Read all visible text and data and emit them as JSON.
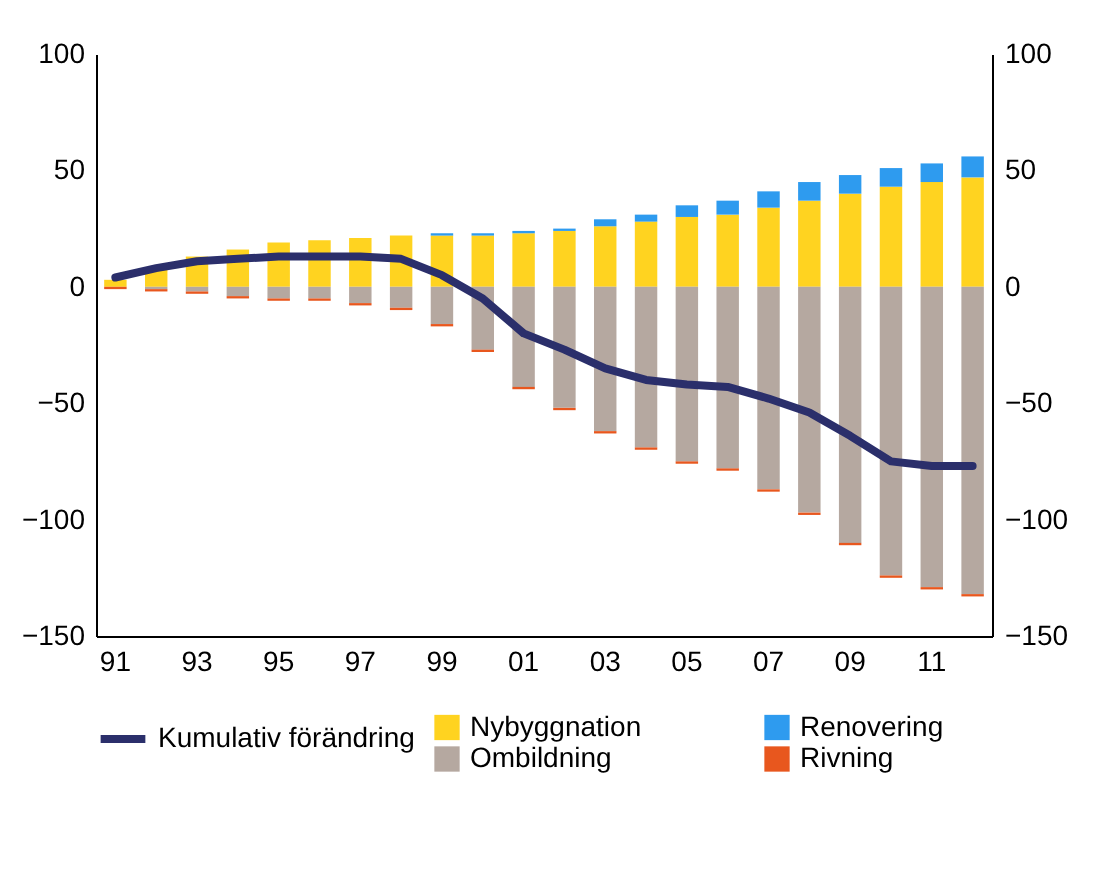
{
  "chart_data": {
    "type": "bar",
    "stacked": true,
    "legend": "bottom",
    "grid": false,
    "categories": [
      "91",
      null,
      "93",
      null,
      "95",
      null,
      "97",
      null,
      "99",
      null,
      "01",
      null,
      "03",
      null,
      "05",
      null,
      "07",
      null,
      "09",
      null,
      "11",
      null
    ],
    "ylim": [
      -150,
      100
    ],
    "yticks": [
      -150,
      -100,
      -50,
      0,
      50,
      100
    ],
    "y2lim": [
      -150,
      100
    ],
    "y2ticks": [
      -150,
      -100,
      -50,
      0,
      50,
      100
    ],
    "series": [
      {
        "name": "Nybyggnation",
        "color": "#ffd320",
        "values": [
          3,
          8,
          13,
          16,
          19,
          20,
          21,
          22,
          22,
          22,
          23,
          24,
          26,
          28,
          30,
          31,
          34,
          37,
          40,
          43,
          45,
          47
        ]
      },
      {
        "name": "Renovering",
        "color": "#2e9bef",
        "values": [
          0,
          0,
          0,
          0,
          0,
          0,
          0,
          0,
          1,
          1,
          1,
          1,
          3,
          3,
          5,
          6,
          7,
          8,
          8,
          8,
          8,
          9
        ]
      },
      {
        "name": "Ombildning",
        "color": "#b5a8a0",
        "values": [
          0,
          -1,
          -2,
          -4,
          -5,
          -5,
          -7,
          -9,
          -16,
          -27,
          -43,
          -52,
          -62,
          -69,
          -75,
          -78,
          -87,
          -97,
          -110,
          -124,
          -129,
          -132
        ]
      },
      {
        "name": "Rivning",
        "color": "#e8571e",
        "values": [
          -1,
          -1,
          -1,
          -1,
          -1,
          -1,
          -1,
          -1,
          -1,
          -1,
          -1,
          -1,
          -1,
          -1,
          -1,
          -1,
          -1,
          -1,
          -1,
          -1,
          -1,
          -1
        ]
      },
      {
        "name": "Kumulativ förändring",
        "type": "line",
        "axis": "y2",
        "color": "#2b2f6b",
        "values": [
          4,
          8,
          11,
          12,
          13,
          13,
          13,
          12,
          5,
          -5,
          -20,
          -27,
          -35,
          -40,
          -42,
          -43,
          -48,
          -54,
          -64,
          -75,
          -77,
          -77
        ]
      }
    ]
  }
}
